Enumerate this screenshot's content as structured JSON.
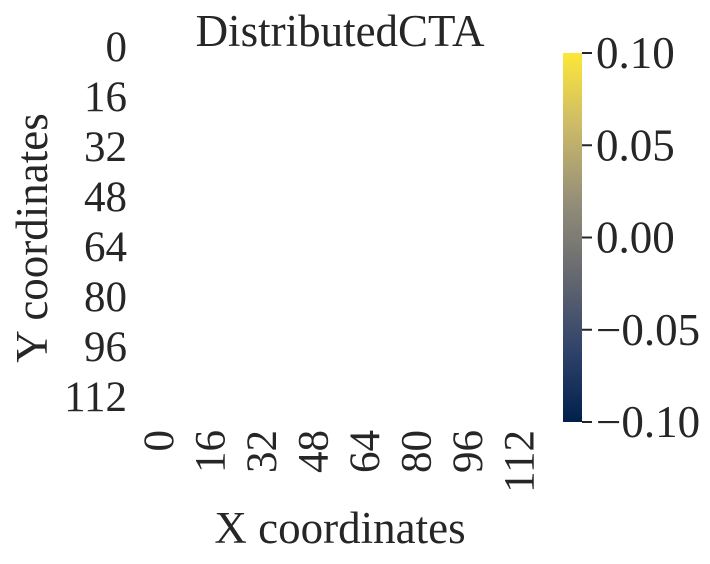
{
  "chart_data": {
    "type": "heatmap",
    "title": "DistributedCTA",
    "xlabel": "X coordinates",
    "ylabel": "Y coordinates",
    "x_ticks": [
      "0",
      "16",
      "32",
      "48",
      "64",
      "80",
      "96",
      "112"
    ],
    "y_ticks": [
      "0",
      "16",
      "32",
      "48",
      "64",
      "80",
      "96",
      "112"
    ],
    "xlim": [
      0,
      128
    ],
    "ylim": [
      0,
      128
    ],
    "values": [],
    "colorbar": {
      "ticks": [
        0.1,
        0.05,
        0.0,
        -0.05,
        -0.1
      ],
      "tick_labels": [
        "0.10",
        "0.05",
        "0.00",
        "−0.05",
        "−0.10"
      ],
      "range": [
        -0.1,
        0.1
      ],
      "colormap": "cividis",
      "colors": [
        "#00204c",
        "#31446b",
        "#666970",
        "#958f78",
        "#cbba69",
        "#fde737"
      ]
    },
    "grid": false
  }
}
